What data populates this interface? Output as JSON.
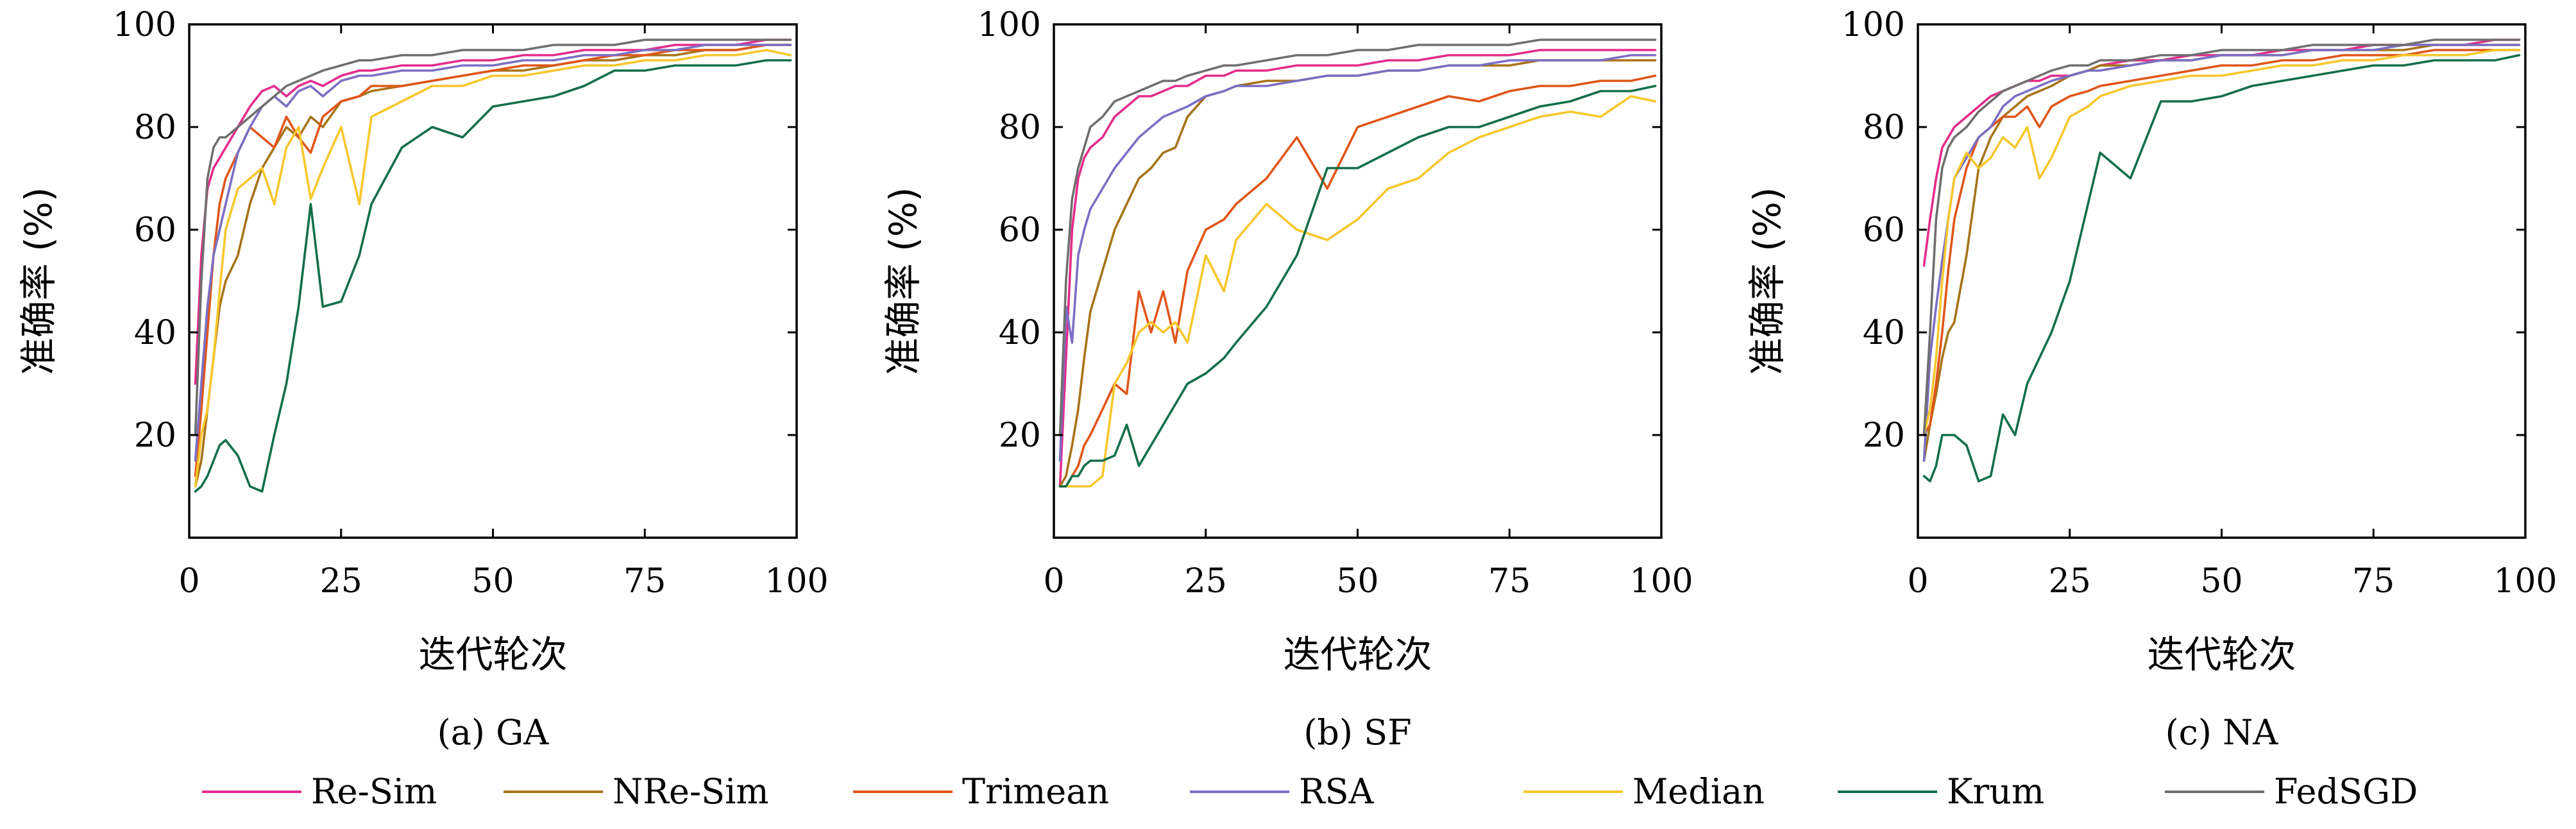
{
  "chart_data": [
    {
      "type": "line",
      "caption": "(a) GA",
      "xlabel": "迭代轮次",
      "ylabel": "准确率 (%)",
      "xlim": [
        0,
        100
      ],
      "ylim": [
        0,
        100
      ],
      "xticks": [
        "0",
        "25",
        "50",
        "75",
        "100"
      ],
      "yticks": [
        "20",
        "40",
        "60",
        "80",
        "100"
      ],
      "x": [
        1,
        2,
        3,
        4,
        5,
        6,
        8,
        10,
        12,
        14,
        16,
        18,
        20,
        22,
        25,
        28,
        30,
        35,
        40,
        45,
        50,
        55,
        60,
        65,
        70,
        75,
        80,
        85,
        90,
        95,
        99
      ],
      "series": [
        {
          "name": "Re-Sim",
          "values": [
            30,
            55,
            68,
            72,
            74,
            76,
            80,
            84,
            87,
            88,
            86,
            88,
            89,
            88,
            90,
            91,
            91,
            92,
            92,
            93,
            93,
            94,
            94,
            95,
            95,
            95,
            96,
            96,
            96,
            97,
            97
          ]
        },
        {
          "name": "NRe-Sim",
          "values": [
            10,
            15,
            25,
            35,
            45,
            50,
            55,
            65,
            72,
            76,
            80,
            78,
            82,
            80,
            85,
            86,
            87,
            88,
            89,
            90,
            91,
            91,
            92,
            93,
            93,
            94,
            94,
            95,
            95,
            96,
            96
          ]
        },
        {
          "name": "Trimean",
          "values": [
            12,
            25,
            40,
            55,
            65,
            70,
            75,
            80,
            78,
            76,
            82,
            78,
            75,
            82,
            85,
            86,
            88,
            88,
            89,
            90,
            91,
            92,
            92,
            93,
            94,
            94,
            95,
            95,
            95,
            96,
            96
          ]
        },
        {
          "name": "RSA",
          "values": [
            15,
            30,
            45,
            55,
            60,
            65,
            75,
            80,
            84,
            86,
            84,
            87,
            88,
            86,
            89,
            90,
            90,
            91,
            91,
            92,
            92,
            93,
            93,
            94,
            94,
            95,
            95,
            96,
            96,
            96,
            96
          ]
        },
        {
          "name": "Median",
          "values": [
            10,
            20,
            25,
            35,
            48,
            60,
            68,
            70,
            72,
            65,
            76,
            80,
            66,
            72,
            80,
            65,
            82,
            85,
            88,
            88,
            90,
            90,
            91,
            92,
            92,
            93,
            93,
            94,
            94,
            95,
            94
          ]
        },
        {
          "name": "Krum",
          "values": [
            9,
            10,
            12,
            15,
            18,
            19,
            16,
            10,
            9,
            20,
            30,
            45,
            65,
            45,
            46,
            55,
            65,
            76,
            80,
            78,
            84,
            85,
            86,
            88,
            91,
            91,
            92,
            92,
            92,
            93,
            93
          ]
        },
        {
          "name": "FedSGD",
          "values": [
            20,
            50,
            70,
            76,
            78,
            78,
            80,
            82,
            84,
            86,
            88,
            89,
            90,
            91,
            92,
            93,
            93,
            94,
            94,
            95,
            95,
            95,
            96,
            96,
            96,
            97,
            97,
            97,
            97,
            97,
            97
          ]
        }
      ]
    },
    {
      "type": "line",
      "caption": "(b) SF",
      "xlabel": "迭代轮次",
      "ylabel": "准确率 (%)",
      "xlim": [
        0,
        100
      ],
      "ylim": [
        0,
        100
      ],
      "xticks": [
        "0",
        "25",
        "50",
        "75",
        "100"
      ],
      "yticks": [
        "20",
        "40",
        "60",
        "80",
        "100"
      ],
      "x": [
        1,
        2,
        3,
        4,
        5,
        6,
        8,
        10,
        12,
        14,
        16,
        18,
        20,
        22,
        25,
        28,
        30,
        35,
        40,
        45,
        50,
        55,
        60,
        65,
        70,
        75,
        80,
        85,
        90,
        95,
        99
      ],
      "series": [
        {
          "name": "Re-Sim",
          "values": [
            10,
            35,
            60,
            70,
            74,
            76,
            78,
            82,
            84,
            86,
            86,
            87,
            88,
            88,
            90,
            90,
            91,
            91,
            92,
            92,
            92,
            93,
            93,
            94,
            94,
            94,
            95,
            95,
            95,
            95,
            95
          ]
        },
        {
          "name": "NRe-Sim",
          "values": [
            10,
            12,
            18,
            25,
            35,
            44,
            52,
            60,
            65,
            70,
            72,
            75,
            76,
            82,
            86,
            87,
            88,
            89,
            89,
            90,
            90,
            91,
            91,
            92,
            92,
            92,
            93,
            93,
            93,
            93,
            93
          ]
        },
        {
          "name": "Trimean",
          "values": [
            10,
            10,
            12,
            14,
            18,
            20,
            25,
            30,
            28,
            48,
            40,
            48,
            38,
            52,
            60,
            62,
            65,
            70,
            78,
            68,
            80,
            82,
            84,
            86,
            85,
            87,
            88,
            88,
            89,
            89,
            90
          ]
        },
        {
          "name": "RSA",
          "values": [
            15,
            45,
            38,
            55,
            60,
            64,
            68,
            72,
            75,
            78,
            80,
            82,
            83,
            84,
            86,
            87,
            88,
            88,
            89,
            90,
            90,
            91,
            91,
            92,
            92,
            93,
            93,
            93,
            93,
            94,
            94
          ]
        },
        {
          "name": "Median",
          "values": [
            10,
            10,
            10,
            10,
            10,
            10,
            12,
            30,
            34,
            40,
            42,
            40,
            42,
            38,
            55,
            48,
            58,
            65,
            60,
            58,
            62,
            68,
            70,
            75,
            78,
            80,
            82,
            83,
            82,
            86,
            85
          ]
        },
        {
          "name": "Krum",
          "values": [
            10,
            10,
            12,
            12,
            14,
            15,
            15,
            16,
            22,
            14,
            18,
            22,
            26,
            30,
            32,
            35,
            38,
            45,
            55,
            72,
            72,
            75,
            78,
            80,
            80,
            82,
            84,
            85,
            87,
            87,
            88
          ]
        },
        {
          "name": "FedSGD",
          "values": [
            20,
            50,
            66,
            72,
            76,
            80,
            82,
            85,
            86,
            87,
            88,
            89,
            89,
            90,
            91,
            92,
            92,
            93,
            94,
            94,
            95,
            95,
            96,
            96,
            96,
            96,
            97,
            97,
            97,
            97,
            97
          ]
        }
      ]
    },
    {
      "type": "line",
      "caption": "(c) NA",
      "xlabel": "迭代轮次",
      "ylabel": "准确率 (%)",
      "xlim": [
        0,
        100
      ],
      "ylim": [
        0,
        100
      ],
      "xticks": [
        "0",
        "25",
        "50",
        "75",
        "100"
      ],
      "yticks": [
        "20",
        "40",
        "60",
        "80",
        "100"
      ],
      "x": [
        1,
        2,
        3,
        4,
        5,
        6,
        8,
        10,
        12,
        14,
        16,
        18,
        20,
        22,
        25,
        28,
        30,
        35,
        40,
        45,
        50,
        55,
        60,
        65,
        70,
        75,
        80,
        85,
        90,
        95,
        99
      ],
      "series": [
        {
          "name": "Re-Sim",
          "values": [
            53,
            62,
            70,
            76,
            78,
            80,
            82,
            84,
            86,
            87,
            88,
            89,
            89,
            90,
            90,
            91,
            92,
            93,
            93,
            94,
            94,
            94,
            95,
            95,
            95,
            96,
            96,
            96,
            96,
            97,
            97
          ]
        },
        {
          "name": "NRe-Sim",
          "values": [
            15,
            22,
            28,
            35,
            40,
            42,
            55,
            72,
            78,
            82,
            84,
            86,
            87,
            88,
            90,
            91,
            92,
            92,
            93,
            93,
            94,
            94,
            94,
            95,
            95,
            95,
            95,
            96,
            96,
            96,
            96
          ]
        },
        {
          "name": "Trimean",
          "values": [
            20,
            22,
            30,
            40,
            52,
            62,
            72,
            78,
            80,
            82,
            82,
            84,
            80,
            84,
            86,
            87,
            88,
            89,
            90,
            91,
            92,
            92,
            93,
            93,
            94,
            94,
            94,
            95,
            95,
            95,
            95
          ]
        },
        {
          "name": "RSA",
          "values": [
            15,
            35,
            45,
            54,
            62,
            70,
            74,
            78,
            80,
            84,
            86,
            87,
            88,
            89,
            90,
            91,
            91,
            92,
            93,
            93,
            94,
            94,
            94,
            95,
            95,
            95,
            96,
            96,
            96,
            96,
            96
          ]
        },
        {
          "name": "Median",
          "values": [
            20,
            25,
            35,
            50,
            62,
            70,
            75,
            72,
            74,
            78,
            76,
            80,
            70,
            74,
            82,
            84,
            86,
            88,
            89,
            90,
            90,
            91,
            92,
            92,
            93,
            93,
            94,
            94,
            94,
            95,
            95
          ]
        },
        {
          "name": "Krum",
          "values": [
            12,
            11,
            14,
            20,
            20,
            20,
            18,
            11,
            12,
            24,
            20,
            30,
            35,
            40,
            50,
            65,
            75,
            70,
            85,
            85,
            86,
            88,
            89,
            90,
            91,
            92,
            92,
            93,
            93,
            93,
            94
          ]
        },
        {
          "name": "FedSGD",
          "values": [
            20,
            40,
            62,
            72,
            76,
            78,
            80,
            83,
            85,
            87,
            88,
            89,
            90,
            91,
            92,
            92,
            93,
            93,
            94,
            94,
            95,
            95,
            95,
            96,
            96,
            96,
            96,
            97,
            97,
            97,
            97
          ]
        }
      ]
    }
  ],
  "legend": {
    "placement": "bottom",
    "items": [
      {
        "name": "Re-Sim",
        "color": "#e32c8c"
      },
      {
        "name": "NRe-Sim",
        "color": "#a6741a"
      },
      {
        "name": "Trimean",
        "color": "#e0561a"
      },
      {
        "name": "RSA",
        "color": "#7b6fc4"
      },
      {
        "name": "Median",
        "color": "#f7c72c"
      },
      {
        "name": "Krum",
        "color": "#136f4a"
      },
      {
        "name": "FedSGD",
        "color": "#6f6f6f"
      }
    ]
  }
}
